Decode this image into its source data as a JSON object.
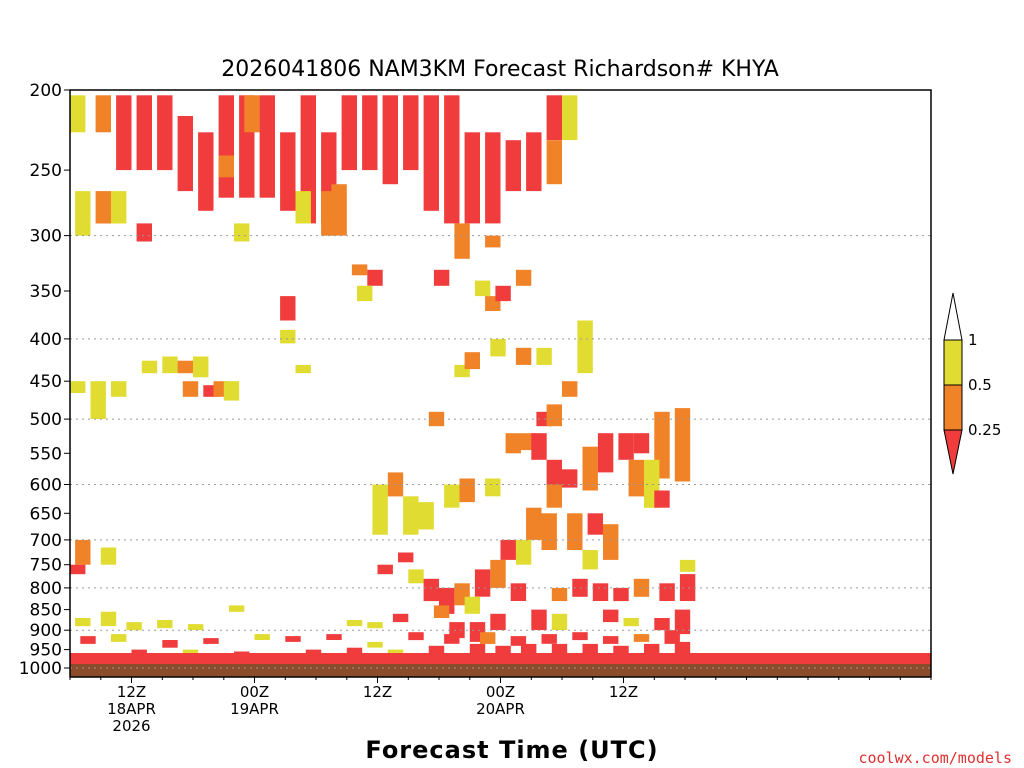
{
  "chart_data": {
    "type": "heatmap",
    "title": "2026041806 NAM3KM Forecast Richardson# KHYA",
    "xlabel": "Forecast Time (UTC)",
    "credit": "coolwx.com/models",
    "x_range_hours": [
      0,
      84
    ],
    "x_ticks": [
      {
        "hour": 6,
        "lines": [
          "12Z",
          "18APR",
          "2026"
        ]
      },
      {
        "hour": 18,
        "lines": [
          "00Z",
          "19APR"
        ]
      },
      {
        "hour": 30,
        "lines": [
          "12Z"
        ]
      },
      {
        "hour": 42,
        "lines": [
          "00Z",
          "20APR"
        ]
      },
      {
        "hour": 54,
        "lines": [
          "12Z"
        ]
      }
    ],
    "y_range_hpa": [
      1000,
      200
    ],
    "y_ticks": [
      200,
      250,
      300,
      350,
      400,
      450,
      500,
      550,
      600,
      650,
      700,
      750,
      800,
      850,
      900,
      950,
      1000
    ],
    "dotted_gridlines_hpa": [
      300,
      400,
      500,
      600,
      700,
      800,
      900,
      1000
    ],
    "colorbar": {
      "colors": {
        "gt_1": "#ffffff",
        "0.5-1": "#e0dc32",
        "0.25-0.5": "#f08228",
        "lt_0.25": "#f03c3c"
      },
      "labels": [
        "1",
        "0.5",
        "0.25"
      ]
    },
    "ground_color": "#8b4c2c",
    "cells": [
      {
        "c": "y",
        "t": 0.0,
        "p": [
          203,
          225
        ]
      },
      {
        "c": "o",
        "t": 2.5,
        "p": [
          203,
          225
        ]
      },
      {
        "c": "r",
        "t": 4.5,
        "p": [
          203,
          250
        ]
      },
      {
        "c": "r",
        "t": 6.5,
        "p": [
          203,
          250
        ]
      },
      {
        "c": "r",
        "t": 8.5,
        "p": [
          203,
          250
        ]
      },
      {
        "c": "r",
        "t": 10.5,
        "p": [
          215,
          265
        ]
      },
      {
        "c": "r",
        "t": 12.5,
        "p": [
          225,
          280
        ]
      },
      {
        "c": "r",
        "t": 14.5,
        "p": [
          203,
          270
        ]
      },
      {
        "c": "o",
        "t": 14.5,
        "p": [
          240,
          255
        ]
      },
      {
        "c": "r",
        "t": 16.5,
        "p": [
          203,
          270
        ]
      },
      {
        "c": "o",
        "t": 17.0,
        "p": [
          203,
          225
        ]
      },
      {
        "c": "r",
        "t": 18.5,
        "p": [
          203,
          270
        ]
      },
      {
        "c": "r",
        "t": 20.5,
        "p": [
          225,
          280
        ]
      },
      {
        "c": "r",
        "t": 22.5,
        "p": [
          203,
          290
        ]
      },
      {
        "c": "r",
        "t": 24.5,
        "p": [
          225,
          290
        ]
      },
      {
        "c": "o",
        "t": 25.5,
        "p": [
          260,
          300
        ]
      },
      {
        "c": "r",
        "t": 26.5,
        "p": [
          203,
          250
        ]
      },
      {
        "c": "r",
        "t": 28.5,
        "p": [
          203,
          250
        ]
      },
      {
        "c": "r",
        "t": 30.5,
        "p": [
          203,
          260
        ]
      },
      {
        "c": "r",
        "t": 32.5,
        "p": [
          203,
          250
        ]
      },
      {
        "c": "r",
        "t": 34.5,
        "p": [
          203,
          280
        ]
      },
      {
        "c": "r",
        "t": 36.5,
        "p": [
          203,
          290
        ]
      },
      {
        "c": "r",
        "t": 38.5,
        "p": [
          225,
          290
        ]
      },
      {
        "c": "r",
        "t": 40.5,
        "p": [
          225,
          290
        ]
      },
      {
        "c": "o",
        "t": 40.5,
        "p": [
          300,
          310
        ]
      },
      {
        "c": "r",
        "t": 42.5,
        "p": [
          230,
          265
        ]
      },
      {
        "c": "r",
        "t": 44.5,
        "p": [
          225,
          265
        ]
      },
      {
        "c": "r",
        "t": 46.5,
        "p": [
          203,
          230
        ]
      },
      {
        "c": "o",
        "t": 46.5,
        "p": [
          230,
          260
        ]
      },
      {
        "c": "y",
        "t": 48.0,
        "p": [
          203,
          230
        ]
      },
      {
        "c": "y",
        "t": 0.5,
        "p": [
          265,
          300
        ]
      },
      {
        "c": "o",
        "t": 2.5,
        "p": [
          265,
          290
        ]
      },
      {
        "c": "y",
        "t": 4.0,
        "p": [
          265,
          290
        ]
      },
      {
        "c": "r",
        "t": 6.5,
        "p": [
          290,
          305
        ]
      },
      {
        "c": "y",
        "t": 16.0,
        "p": [
          290,
          305
        ]
      },
      {
        "c": "y",
        "t": 22.0,
        "p": [
          265,
          290
        ]
      },
      {
        "c": "o",
        "t": 24.5,
        "p": [
          265,
          300
        ]
      },
      {
        "c": "o",
        "t": 27.5,
        "p": [
          325,
          335
        ]
      },
      {
        "c": "r",
        "t": 29.0,
        "p": [
          330,
          345
        ]
      },
      {
        "c": "y",
        "t": 28.0,
        "p": [
          345,
          360
        ]
      },
      {
        "c": "r",
        "t": 35.5,
        "p": [
          330,
          345
        ]
      },
      {
        "c": "o",
        "t": 37.5,
        "p": [
          290,
          320
        ]
      },
      {
        "c": "y",
        "t": 39.5,
        "p": [
          340,
          355
        ]
      },
      {
        "c": "o",
        "t": 40.5,
        "p": [
          355,
          370
        ]
      },
      {
        "c": "r",
        "t": 41.5,
        "p": [
          345,
          360
        ]
      },
      {
        "c": "o",
        "t": 43.5,
        "p": [
          330,
          345
        ]
      },
      {
        "c": "r",
        "t": 20.5,
        "p": [
          355,
          380
        ]
      },
      {
        "c": "y",
        "t": 20.5,
        "p": [
          390,
          405
        ]
      },
      {
        "c": "y",
        "t": 22.0,
        "p": [
          430,
          440
        ]
      },
      {
        "c": "y",
        "t": 7.0,
        "p": [
          425,
          440
        ]
      },
      {
        "c": "y",
        "t": 9.0,
        "p": [
          420,
          440
        ]
      },
      {
        "c": "o",
        "t": 10.5,
        "p": [
          425,
          440
        ]
      },
      {
        "c": "y",
        "t": 12.0,
        "p": [
          420,
          445
        ]
      },
      {
        "c": "o",
        "t": 11.0,
        "p": [
          450,
          470
        ]
      },
      {
        "c": "r",
        "t": 13.0,
        "p": [
          455,
          470
        ]
      },
      {
        "c": "o",
        "t": 14.0,
        "p": [
          450,
          470
        ]
      },
      {
        "c": "y",
        "t": 15.0,
        "p": [
          450,
          475
        ]
      },
      {
        "c": "y",
        "t": 0.0,
        "p": [
          450,
          465
        ]
      },
      {
        "c": "y",
        "t": 2.0,
        "p": [
          450,
          500
        ]
      },
      {
        "c": "y",
        "t": 4.0,
        "p": [
          450,
          470
        ]
      },
      {
        "c": "o",
        "t": 35.0,
        "p": [
          490,
          510
        ]
      },
      {
        "c": "y",
        "t": 37.5,
        "p": [
          430,
          445
        ]
      },
      {
        "c": "o",
        "t": 38.5,
        "p": [
          415,
          435
        ]
      },
      {
        "c": "y",
        "t": 41.0,
        "p": [
          400,
          420
        ]
      },
      {
        "c": "o",
        "t": 43.5,
        "p": [
          410,
          430
        ]
      },
      {
        "c": "y",
        "t": 45.5,
        "p": [
          410,
          430
        ]
      },
      {
        "c": "r",
        "t": 45.5,
        "p": [
          490,
          510
        ]
      },
      {
        "c": "o",
        "t": 46.5,
        "p": [
          480,
          510
        ]
      },
      {
        "c": "o",
        "t": 48.0,
        "p": [
          450,
          470
        ]
      },
      {
        "c": "y",
        "t": 49.5,
        "p": [
          380,
          440
        ]
      },
      {
        "c": "o",
        "t": 42.5,
        "p": [
          520,
          550
        ]
      },
      {
        "c": "o",
        "t": 44.0,
        "p": [
          520,
          545
        ]
      },
      {
        "c": "r",
        "t": 45.0,
        "p": [
          520,
          560
        ]
      },
      {
        "c": "r",
        "t": 46.5,
        "p": [
          560,
          600
        ]
      },
      {
        "c": "o",
        "t": 46.5,
        "p": [
          600,
          640
        ]
      },
      {
        "c": "r",
        "t": 48.0,
        "p": [
          575,
          605
        ]
      },
      {
        "c": "o",
        "t": 50.0,
        "p": [
          540,
          610
        ]
      },
      {
        "c": "r",
        "t": 51.5,
        "p": [
          520,
          580
        ]
      },
      {
        "c": "r",
        "t": 53.5,
        "p": [
          520,
          560
        ]
      },
      {
        "c": "r",
        "t": 55.0,
        "p": [
          520,
          550
        ]
      },
      {
        "c": "o",
        "t": 57.0,
        "p": [
          490,
          590
        ]
      },
      {
        "c": "o",
        "t": 59.0,
        "p": [
          485,
          595
        ]
      },
      {
        "c": "o",
        "t": 54.5,
        "p": [
          560,
          620
        ]
      },
      {
        "c": "y",
        "t": 56.0,
        "p": [
          560,
          640
        ]
      },
      {
        "c": "r",
        "t": 57.0,
        "p": [
          610,
          640
        ]
      },
      {
        "c": "o",
        "t": 44.5,
        "p": [
          640,
          700
        ]
      },
      {
        "c": "y",
        "t": 43.5,
        "p": [
          700,
          750
        ]
      },
      {
        "c": "o",
        "t": 46.0,
        "p": [
          650,
          720
        ]
      },
      {
        "c": "o",
        "t": 48.5,
        "p": [
          650,
          720
        ]
      },
      {
        "c": "r",
        "t": 50.5,
        "p": [
          650,
          690
        ]
      },
      {
        "c": "o",
        "t": 52.0,
        "p": [
          670,
          740
        ]
      },
      {
        "c": "y",
        "t": 50.0,
        "p": [
          720,
          760
        ]
      },
      {
        "c": "y",
        "t": 29.5,
        "p": [
          600,
          690
        ]
      },
      {
        "c": "o",
        "t": 31.0,
        "p": [
          580,
          620
        ]
      },
      {
        "c": "y",
        "t": 32.5,
        "p": [
          620,
          690
        ]
      },
      {
        "c": "y",
        "t": 34.0,
        "p": [
          630,
          680
        ]
      },
      {
        "c": "y",
        "t": 36.5,
        "p": [
          600,
          640
        ]
      },
      {
        "c": "o",
        "t": 38.0,
        "p": [
          590,
          630
        ]
      },
      {
        "c": "y",
        "t": 40.5,
        "p": [
          590,
          620
        ]
      },
      {
        "c": "r",
        "t": 42.0,
        "p": [
          700,
          740
        ]
      },
      {
        "c": "o",
        "t": 41.0,
        "p": [
          740,
          800
        ]
      },
      {
        "c": "r",
        "t": 39.5,
        "p": [
          760,
          820
        ]
      },
      {
        "c": "o",
        "t": 0.5,
        "p": [
          700,
          750
        ]
      },
      {
        "c": "r",
        "t": 0.0,
        "p": [
          750,
          770
        ]
      },
      {
        "c": "y",
        "t": 3.0,
        "p": [
          715,
          750
        ]
      },
      {
        "c": "r",
        "t": 30.0,
        "p": [
          750,
          770
        ]
      },
      {
        "c": "r",
        "t": 32.0,
        "p": [
          725,
          745
        ]
      },
      {
        "c": "y",
        "t": 33.0,
        "p": [
          760,
          790
        ]
      },
      {
        "c": "r",
        "t": 34.5,
        "p": [
          780,
          830
        ]
      },
      {
        "c": "r",
        "t": 36.0,
        "p": [
          800,
          860
        ]
      },
      {
        "c": "o",
        "t": 37.5,
        "p": [
          790,
          840
        ]
      },
      {
        "c": "y",
        "t": 38.5,
        "p": [
          820,
          860
        ]
      },
      {
        "c": "r",
        "t": 43.0,
        "p": [
          790,
          830
        ]
      },
      {
        "c": "o",
        "t": 47.0,
        "p": [
          800,
          830
        ]
      },
      {
        "c": "r",
        "t": 49.0,
        "p": [
          780,
          820
        ]
      },
      {
        "c": "r",
        "t": 51.0,
        "p": [
          790,
          830
        ]
      },
      {
        "c": "r",
        "t": 53.0,
        "p": [
          800,
          830
        ]
      },
      {
        "c": "o",
        "t": 55.0,
        "p": [
          780,
          820
        ]
      },
      {
        "c": "r",
        "t": 57.5,
        "p": [
          790,
          830
        ]
      },
      {
        "c": "r",
        "t": 59.5,
        "p": [
          770,
          830
        ]
      },
      {
        "c": "y",
        "t": 59.5,
        "p": [
          740,
          765
        ]
      },
      {
        "c": "y",
        "t": 0.5,
        "p": [
          870,
          890
        ]
      },
      {
        "c": "y",
        "t": 3.0,
        "p": [
          855,
          890
        ]
      },
      {
        "c": "y",
        "t": 5.5,
        "p": [
          880,
          900
        ]
      },
      {
        "c": "y",
        "t": 8.5,
        "p": [
          875,
          895
        ]
      },
      {
        "c": "y",
        "t": 11.5,
        "p": [
          885,
          900
        ]
      },
      {
        "c": "y",
        "t": 15.5,
        "p": [
          840,
          855
        ]
      },
      {
        "c": "y",
        "t": 27.0,
        "p": [
          875,
          890
        ]
      },
      {
        "c": "y",
        "t": 29.0,
        "p": [
          880,
          895
        ]
      },
      {
        "c": "r",
        "t": 31.5,
        "p": [
          860,
          880
        ]
      },
      {
        "c": "o",
        "t": 35.5,
        "p": [
          840,
          870
        ]
      },
      {
        "c": "r",
        "t": 37.0,
        "p": [
          880,
          920
        ]
      },
      {
        "c": "r",
        "t": 39.0,
        "p": [
          880,
          930
        ]
      },
      {
        "c": "r",
        "t": 41.0,
        "p": [
          860,
          900
        ]
      },
      {
        "c": "r",
        "t": 45.0,
        "p": [
          850,
          900
        ]
      },
      {
        "c": "y",
        "t": 47.0,
        "p": [
          860,
          900
        ]
      },
      {
        "c": "r",
        "t": 52.0,
        "p": [
          850,
          880
        ]
      },
      {
        "c": "y",
        "t": 54.0,
        "p": [
          870,
          890
        ]
      },
      {
        "c": "r",
        "t": 57.0,
        "p": [
          870,
          900
        ]
      },
      {
        "c": "r",
        "t": 59.0,
        "p": [
          850,
          910
        ]
      },
      {
        "c": "r",
        "t": 1.0,
        "p": [
          915,
          935
        ]
      },
      {
        "c": "y",
        "t": 4.0,
        "p": [
          910,
          930
        ]
      },
      {
        "c": "r",
        "t": 9.0,
        "p": [
          925,
          945
        ]
      },
      {
        "c": "r",
        "t": 13.0,
        "p": [
          920,
          935
        ]
      },
      {
        "c": "y",
        "t": 18.0,
        "p": [
          910,
          925
        ]
      },
      {
        "c": "r",
        "t": 21.0,
        "p": [
          915,
          930
        ]
      },
      {
        "c": "r",
        "t": 25.0,
        "p": [
          910,
          925
        ]
      },
      {
        "c": "y",
        "t": 29.0,
        "p": [
          930,
          945
        ]
      },
      {
        "c": "r",
        "t": 33.0,
        "p": [
          905,
          925
        ]
      },
      {
        "c": "r",
        "t": 36.5,
        "p": [
          910,
          935
        ]
      },
      {
        "c": "o",
        "t": 40.0,
        "p": [
          905,
          935
        ]
      },
      {
        "c": "r",
        "t": 43.0,
        "p": [
          915,
          940
        ]
      },
      {
        "c": "r",
        "t": 46.0,
        "p": [
          910,
          935
        ]
      },
      {
        "c": "r",
        "t": 49.0,
        "p": [
          905,
          925
        ]
      },
      {
        "c": "r",
        "t": 52.0,
        "p": [
          915,
          935
        ]
      },
      {
        "c": "o",
        "t": 55.0,
        "p": [
          910,
          930
        ]
      },
      {
        "c": "r",
        "t": 58.0,
        "p": [
          900,
          935
        ]
      },
      {
        "c": "r",
        "t": 6.0,
        "p": [
          950,
          968
        ]
      },
      {
        "c": "y",
        "t": 11.0,
        "p": [
          950,
          966
        ]
      },
      {
        "c": "r",
        "t": 16.0,
        "p": [
          955,
          970
        ]
      },
      {
        "c": "r",
        "t": 23.0,
        "p": [
          950,
          968
        ]
      },
      {
        "c": "r",
        "t": 27.0,
        "p": [
          945,
          966
        ]
      },
      {
        "c": "y",
        "t": 31.0,
        "p": [
          950,
          966
        ]
      },
      {
        "c": "r",
        "t": 35.0,
        "p": [
          940,
          966
        ]
      },
      {
        "c": "r",
        "t": 39.0,
        "p": [
          935,
          966
        ]
      },
      {
        "c": "r",
        "t": 41.5,
        "p": [
          940,
          966
        ]
      },
      {
        "c": "r",
        "t": 44.0,
        "p": [
          935,
          966
        ]
      },
      {
        "c": "r",
        "t": 47.0,
        "p": [
          935,
          966
        ]
      },
      {
        "c": "r",
        "t": 50.0,
        "p": [
          935,
          966
        ]
      },
      {
        "c": "r",
        "t": 53.0,
        "p": [
          940,
          966
        ]
      },
      {
        "c": "r",
        "t": 56.0,
        "p": [
          935,
          966
        ]
      },
      {
        "c": "r",
        "t": 59.0,
        "p": [
          930,
          966
        ]
      }
    ]
  }
}
